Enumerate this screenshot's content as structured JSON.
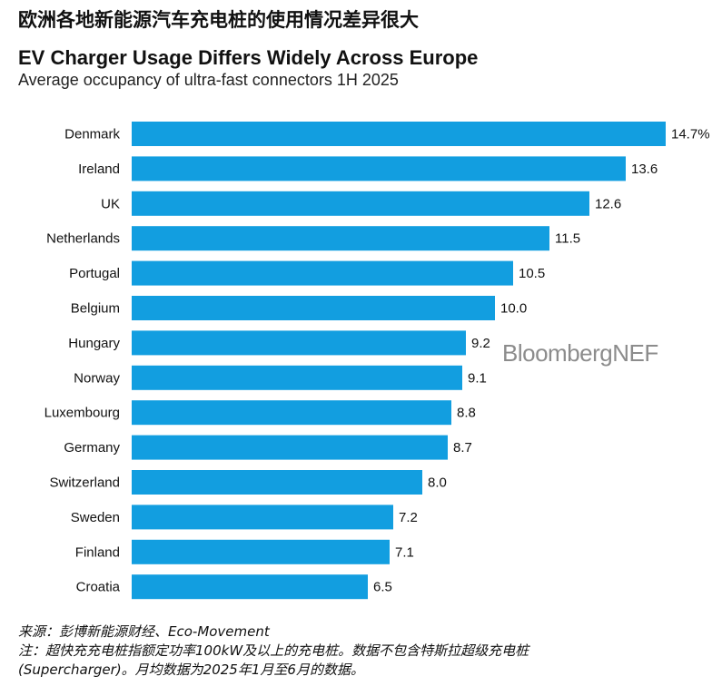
{
  "cn_heading": "欧洲各地新能源汽车充电桩的使用情况差异很大",
  "chart_data": {
    "type": "bar",
    "orientation": "horizontal",
    "title": "EV Charger Usage Differs Widely Across Europe",
    "subtitle": "Average occupancy of ultra-fast connectors 1H 2025",
    "categories": [
      "Denmark",
      "Ireland",
      "UK",
      "Netherlands",
      "Portugal",
      "Belgium",
      "Hungary",
      "Norway",
      "Luxembourg",
      "Germany",
      "Switzerland",
      "Sweden",
      "Finland",
      "Croatia"
    ],
    "values": [
      14.7,
      13.6,
      12.6,
      11.5,
      10.5,
      10.0,
      9.2,
      9.1,
      8.8,
      8.7,
      8.0,
      7.2,
      7.1,
      6.5
    ],
    "value_labels": [
      "14.7%",
      "13.6",
      "12.6",
      "11.5",
      "10.5",
      "10.0",
      "9.2",
      "9.1",
      "8.8",
      "8.7",
      "8.0",
      "7.2",
      "7.1",
      "6.5"
    ],
    "xlim": [
      0,
      14.7
    ],
    "bar_color": "#129ee0",
    "grid": false
  },
  "watermark": "BloombergNEF",
  "footer": {
    "source": "来源：彭博新能源财经、Eco-Movement",
    "note_line1": "注：超快充充电桩指额定功率100kW及以上的充电桩。数据不包含特斯拉超级充电桩",
    "note_line2": "(Supercharger)。月均数据为2025年1月至6月的数据。"
  }
}
